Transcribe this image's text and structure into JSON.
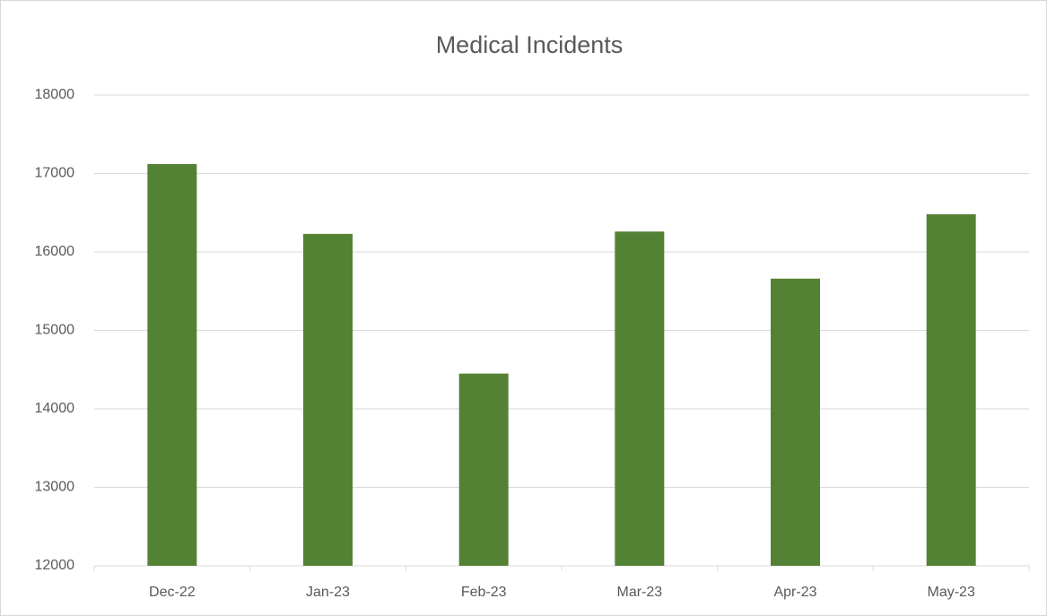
{
  "chart_data": {
    "type": "bar",
    "title": "Medical Incidents",
    "categories": [
      "Dec-22",
      "Jan-23",
      "Feb-23",
      "Mar-23",
      "Apr-23",
      "May-23"
    ],
    "values": [
      17120,
      16230,
      14450,
      16260,
      15660,
      16480
    ],
    "color": "#548235",
    "ylim": [
      12000,
      18000
    ],
    "yticks": [
      12000,
      13000,
      14000,
      15000,
      16000,
      17000,
      18000
    ],
    "grid": true
  }
}
